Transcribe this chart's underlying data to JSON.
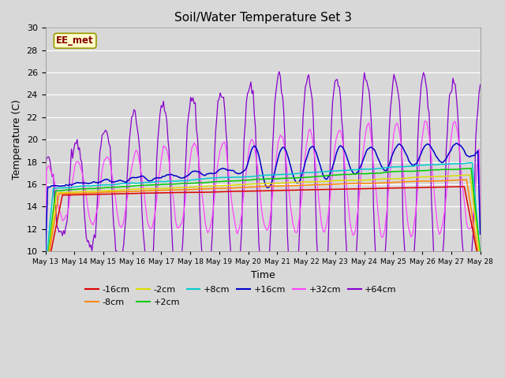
{
  "title": "Soil/Water Temperature Set 3",
  "xlabel": "Time",
  "ylabel": "Temperature (C)",
  "ylim": [
    10,
    30
  ],
  "yticks": [
    10,
    12,
    14,
    16,
    18,
    20,
    22,
    24,
    26,
    28,
    30
  ],
  "background_color": "#d8d8d8",
  "plot_bg_color": "#d8d8d8",
  "watermark_text": "EE_met",
  "watermark_bg": "#ffffcc",
  "watermark_border": "#999900",
  "watermark_text_color": "#880000",
  "legend_entries": [
    "-16cm",
    "-8cm",
    "-2cm",
    "+2cm",
    "+8cm",
    "+16cm",
    "+32cm",
    "+64cm"
  ],
  "line_colors": {
    "-16cm": "#dd0000",
    "-8cm": "#ff8800",
    "-2cm": "#dddd00",
    "+2cm": "#00cc00",
    "+8cm": "#00cccc",
    "+16cm": "#0000cc",
    "+32cm": "#ff44ff",
    "+64cm": "#8800cc"
  },
  "n_points": 384,
  "x_start": 13,
  "x_end": 28,
  "xtick_days": [
    13,
    14,
    15,
    16,
    17,
    18,
    19,
    20,
    21,
    22,
    23,
    24,
    25,
    26,
    27,
    28
  ]
}
